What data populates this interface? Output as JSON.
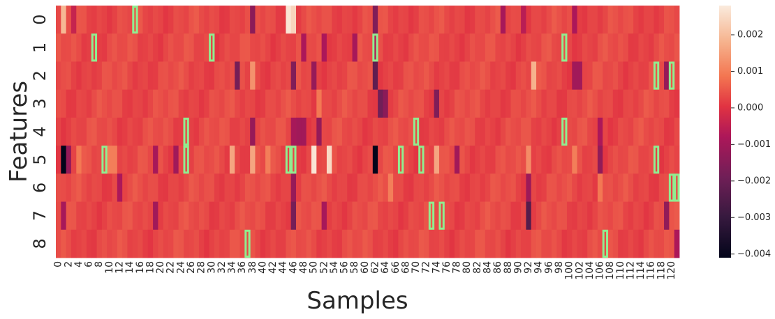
{
  "chart_data": {
    "type": "heatmap",
    "xlabel": "Samples",
    "ylabel": "Features",
    "n_samples": 122,
    "n_features": 9,
    "x_tick_labels": [
      "0",
      "2",
      "4",
      "6",
      "8",
      "10",
      "12",
      "14",
      "16",
      "18",
      "20",
      "22",
      "24",
      "26",
      "28",
      "30",
      "32",
      "34",
      "36",
      "38",
      "40",
      "42",
      "44",
      "46",
      "48",
      "50",
      "52",
      "54",
      "56",
      "58",
      "60",
      "62",
      "64",
      "66",
      "68",
      "70",
      "72",
      "74",
      "76",
      "78",
      "80",
      "82",
      "84",
      "86",
      "88",
      "90",
      "92",
      "94",
      "96",
      "98",
      "100",
      "102",
      "104",
      "106",
      "108",
      "110",
      "112",
      "114",
      "116",
      "118",
      "120"
    ],
    "y_tick_labels": [
      "0",
      "1",
      "2",
      "3",
      "4",
      "5",
      "6",
      "7",
      "8"
    ],
    "colorscale": {
      "name": "rocket",
      "vmin": -0.0041,
      "vmax": 0.0028
    },
    "colorbar_ticks": [
      "0.002",
      "0.001",
      "0.000",
      "-0.001",
      "-0.002",
      "-0.003",
      "-0.004"
    ],
    "baseline_value": 0.0003,
    "notable_cells": [
      {
        "feature": 0,
        "sample": 1,
        "value": 0.0019
      },
      {
        "feature": 0,
        "sample": 3,
        "value": -0.0004
      },
      {
        "feature": 0,
        "sample": 38,
        "value": -0.0014
      },
      {
        "feature": 0,
        "sample": 45,
        "value": 0.0027
      },
      {
        "feature": 0,
        "sample": 46,
        "value": 0.0024
      },
      {
        "feature": 0,
        "sample": 62,
        "value": -0.0016
      },
      {
        "feature": 0,
        "sample": 87,
        "value": -0.0009
      },
      {
        "feature": 0,
        "sample": 91,
        "value": -0.0006
      },
      {
        "feature": 0,
        "sample": 101,
        "value": -0.0008
      },
      {
        "feature": 1,
        "sample": 48,
        "value": -0.0008
      },
      {
        "feature": 1,
        "sample": 52,
        "value": -0.0008
      },
      {
        "feature": 1,
        "sample": 58,
        "value": -0.0009
      },
      {
        "feature": 1,
        "sample": 62,
        "value": -0.0007
      },
      {
        "feature": 2,
        "sample": 35,
        "value": -0.0018
      },
      {
        "feature": 2,
        "sample": 38,
        "value": 0.0013
      },
      {
        "feature": 2,
        "sample": 46,
        "value": -0.0016
      },
      {
        "feature": 2,
        "sample": 50,
        "value": -0.0012
      },
      {
        "feature": 2,
        "sample": 62,
        "value": -0.0022
      },
      {
        "feature": 2,
        "sample": 93,
        "value": 0.0018
      },
      {
        "feature": 2,
        "sample": 101,
        "value": -0.001
      },
      {
        "feature": 2,
        "sample": 102,
        "value": -0.001
      },
      {
        "feature": 2,
        "sample": 119,
        "value": -0.0012
      },
      {
        "feature": 3,
        "sample": 63,
        "value": -0.0019
      },
      {
        "feature": 3,
        "sample": 64,
        "value": -0.0014
      },
      {
        "feature": 3,
        "sample": 74,
        "value": -0.0016
      },
      {
        "feature": 3,
        "sample": 51,
        "value": 0.0009
      },
      {
        "feature": 4,
        "sample": 38,
        "value": -0.0012
      },
      {
        "feature": 4,
        "sample": 46,
        "value": -0.0009
      },
      {
        "feature": 4,
        "sample": 47,
        "value": -0.001
      },
      {
        "feature": 4,
        "sample": 48,
        "value": -0.001
      },
      {
        "feature": 4,
        "sample": 51,
        "value": -0.0012
      },
      {
        "feature": 4,
        "sample": 106,
        "value": -0.0008
      },
      {
        "feature": 5,
        "sample": 1,
        "value": -0.0041
      },
      {
        "feature": 5,
        "sample": 2,
        "value": -0.0012
      },
      {
        "feature": 5,
        "sample": 4,
        "value": 0.0009
      },
      {
        "feature": 5,
        "sample": 10,
        "value": 0.001
      },
      {
        "feature": 5,
        "sample": 11,
        "value": 0.001
      },
      {
        "feature": 5,
        "sample": 19,
        "value": -0.0009
      },
      {
        "feature": 5,
        "sample": 23,
        "value": -0.001
      },
      {
        "feature": 5,
        "sample": 34,
        "value": 0.0016
      },
      {
        "feature": 5,
        "sample": 38,
        "value": 0.0016
      },
      {
        "feature": 5,
        "sample": 41,
        "value": 0.001
      },
      {
        "feature": 5,
        "sample": 50,
        "value": 0.0027
      },
      {
        "feature": 5,
        "sample": 53,
        "value": 0.0025
      },
      {
        "feature": 5,
        "sample": 62,
        "value": -0.0041
      },
      {
        "feature": 5,
        "sample": 74,
        "value": 0.0016
      },
      {
        "feature": 5,
        "sample": 78,
        "value": -0.001
      },
      {
        "feature": 5,
        "sample": 92,
        "value": 0.0012
      },
      {
        "feature": 5,
        "sample": 101,
        "value": 0.001
      },
      {
        "feature": 5,
        "sample": 106,
        "value": -0.0013
      },
      {
        "feature": 6,
        "sample": 12,
        "value": -0.0008
      },
      {
        "feature": 6,
        "sample": 46,
        "value": -0.0012
      },
      {
        "feature": 6,
        "sample": 65,
        "value": 0.001
      },
      {
        "feature": 6,
        "sample": 92,
        "value": -0.0011
      },
      {
        "feature": 6,
        "sample": 106,
        "value": 0.0009
      },
      {
        "feature": 7,
        "sample": 1,
        "value": -0.0009
      },
      {
        "feature": 7,
        "sample": 19,
        "value": -0.001
      },
      {
        "feature": 7,
        "sample": 46,
        "value": -0.0018
      },
      {
        "feature": 7,
        "sample": 52,
        "value": -0.0009
      },
      {
        "feature": 7,
        "sample": 92,
        "value": -0.0024
      },
      {
        "feature": 7,
        "sample": 119,
        "value": -0.0013
      },
      {
        "feature": 8,
        "sample": 121,
        "value": -0.0008
      }
    ],
    "highlighted_cells": [
      {
        "feature": 0,
        "sample": 15
      },
      {
        "feature": 1,
        "sample": 7
      },
      {
        "feature": 1,
        "sample": 30
      },
      {
        "feature": 1,
        "sample": 62
      },
      {
        "feature": 1,
        "sample": 99
      },
      {
        "feature": 2,
        "sample": 117
      },
      {
        "feature": 2,
        "sample": 120
      },
      {
        "feature": 4,
        "sample": 25
      },
      {
        "feature": 4,
        "sample": 70
      },
      {
        "feature": 4,
        "sample": 99
      },
      {
        "feature": 5,
        "sample": 9
      },
      {
        "feature": 5,
        "sample": 25
      },
      {
        "feature": 5,
        "sample": 45
      },
      {
        "feature": 5,
        "sample": 46
      },
      {
        "feature": 5,
        "sample": 67
      },
      {
        "feature": 5,
        "sample": 71
      },
      {
        "feature": 5,
        "sample": 117
      },
      {
        "feature": 6,
        "sample": 120
      },
      {
        "feature": 6,
        "sample": 121
      },
      {
        "feature": 7,
        "sample": 73
      },
      {
        "feature": 7,
        "sample": 75
      },
      {
        "feature": 8,
        "sample": 37
      },
      {
        "feature": 8,
        "sample": 107
      }
    ],
    "highlight_color": "#90ee90",
    "grid": false
  }
}
